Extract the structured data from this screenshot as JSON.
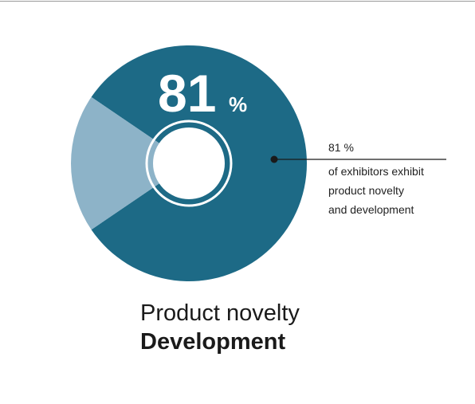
{
  "chart_data": {
    "type": "pie",
    "title": "Product novelty",
    "subtitle": "Development",
    "values": [
      81,
      19
    ],
    "unit": "%",
    "colors": [
      "#1d6a86",
      "#8db3c8"
    ],
    "annotation": {
      "label": "81 %",
      "lines": [
        "of exhibitors exhibit",
        "product novelty",
        "and development"
      ]
    }
  }
}
